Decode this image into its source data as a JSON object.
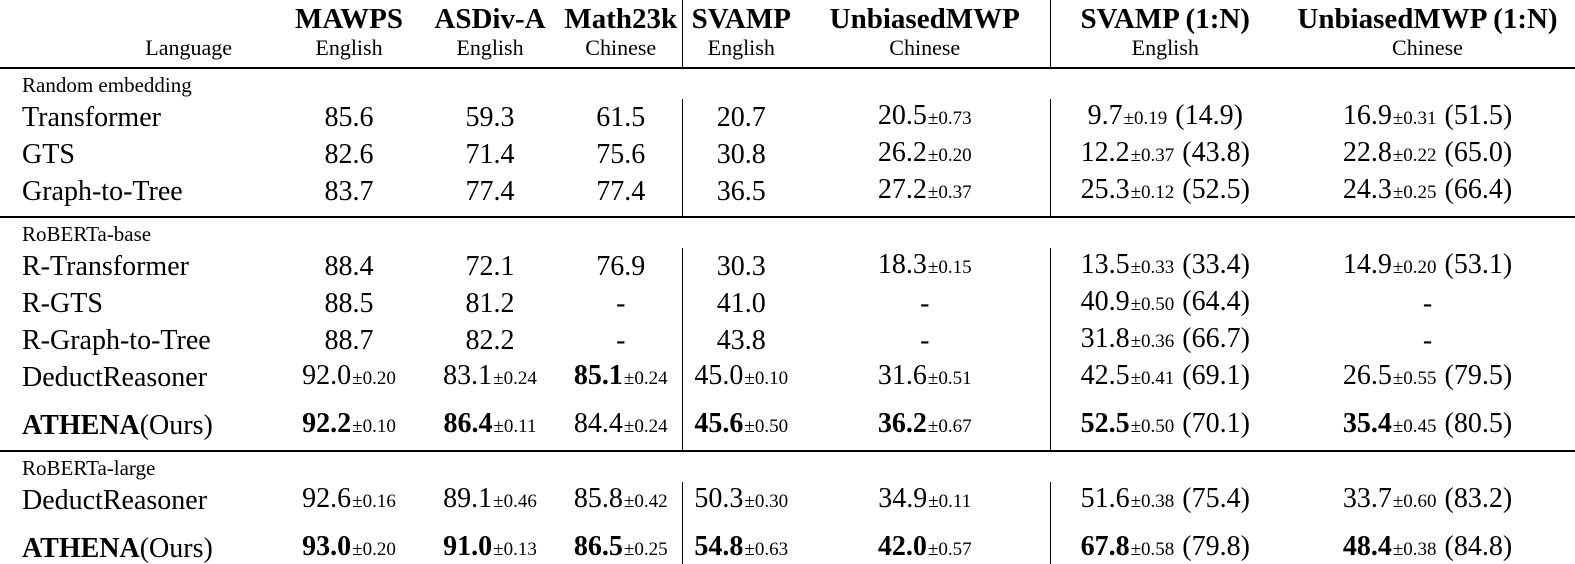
{
  "table": {
    "language_label": "Language",
    "columns": [
      {
        "name": "MAWPS",
        "language": "English",
        "divider": false
      },
      {
        "name": "ASDiv-A",
        "language": "English",
        "divider": false
      },
      {
        "name": "Math23k",
        "language": "Chinese",
        "divider": false
      },
      {
        "name": "SVAMP",
        "language": "English",
        "divider": true
      },
      {
        "name": "UnbiasedMWP",
        "language": "Chinese",
        "divider": false
      },
      {
        "name": "SVAMP (1:N)",
        "language": "English",
        "divider": true
      },
      {
        "name": "UnbiasedMWP (1:N)",
        "language": "Chinese",
        "divider": false
      }
    ],
    "sections": [
      {
        "label": "Random embedding",
        "rows": [
          {
            "method": "Transformer",
            "suffix": "",
            "method_bold": false,
            "spaced": false,
            "cells": [
              {
                "v": "85.6"
              },
              {
                "v": "59.3"
              },
              {
                "v": "61.5"
              },
              {
                "v": "20.7"
              },
              {
                "v": "20.5",
                "pm": "0.73"
              },
              {
                "v": "9.7",
                "pm": "0.19",
                "paren": "14.9"
              },
              {
                "v": "16.9",
                "pm": "0.31",
                "paren": "51.5"
              }
            ]
          },
          {
            "method": "GTS",
            "suffix": "",
            "method_bold": false,
            "spaced": false,
            "cells": [
              {
                "v": "82.6"
              },
              {
                "v": "71.4"
              },
              {
                "v": "75.6"
              },
              {
                "v": "30.8"
              },
              {
                "v": "26.2",
                "pm": "0.20"
              },
              {
                "v": "12.2",
                "pm": "0.37",
                "paren": "43.8"
              },
              {
                "v": "22.8",
                "pm": "0.22",
                "paren": "65.0"
              }
            ]
          },
          {
            "method": "Graph-to-Tree",
            "suffix": "",
            "method_bold": false,
            "spaced": false,
            "cells": [
              {
                "v": "83.7"
              },
              {
                "v": "77.4"
              },
              {
                "v": "77.4"
              },
              {
                "v": "36.5"
              },
              {
                "v": "27.2",
                "pm": "0.37"
              },
              {
                "v": "25.3",
                "pm": "0.12",
                "paren": "52.5"
              },
              {
                "v": "24.3",
                "pm": "0.25",
                "paren": "66.4"
              }
            ]
          }
        ]
      },
      {
        "label": "RoBERTa-base",
        "rows": [
          {
            "method": "R-Transformer",
            "suffix": "",
            "method_bold": false,
            "spaced": false,
            "cells": [
              {
                "v": "88.4"
              },
              {
                "v": "72.1"
              },
              {
                "v": "76.9"
              },
              {
                "v": "30.3"
              },
              {
                "v": "18.3",
                "pm": "0.15"
              },
              {
                "v": "13.5",
                "pm": "0.33",
                "paren": "33.4"
              },
              {
                "v": "14.9",
                "pm": "0.20",
                "paren": "53.1"
              }
            ]
          },
          {
            "method": "R-GTS",
            "suffix": "",
            "method_bold": false,
            "spaced": false,
            "cells": [
              {
                "v": "88.5"
              },
              {
                "v": "81.2"
              },
              {
                "v": "-"
              },
              {
                "v": "41.0"
              },
              {
                "v": "-"
              },
              {
                "v": "40.9",
                "pm": "0.50",
                "paren": "64.4"
              },
              {
                "v": "-"
              }
            ]
          },
          {
            "method": "R-Graph-to-Tree",
            "suffix": "",
            "method_bold": false,
            "spaced": false,
            "cells": [
              {
                "v": "88.7"
              },
              {
                "v": "82.2"
              },
              {
                "v": "-"
              },
              {
                "v": "43.8"
              },
              {
                "v": "-"
              },
              {
                "v": "31.8",
                "pm": "0.36",
                "paren": "66.7"
              },
              {
                "v": "-"
              }
            ]
          },
          {
            "method": "DeductReasoner",
            "suffix": "",
            "method_bold": false,
            "spaced": false,
            "cells": [
              {
                "v": "92.0",
                "pm": "0.20"
              },
              {
                "v": "83.1",
                "pm": "0.24"
              },
              {
                "v": "85.1",
                "pm": "0.24",
                "b": true
              },
              {
                "v": "45.0",
                "pm": "0.10"
              },
              {
                "v": "31.6",
                "pm": "0.51"
              },
              {
                "v": "42.5",
                "pm": "0.41",
                "paren": "69.1"
              },
              {
                "v": "26.5",
                "pm": "0.55",
                "paren": "79.5"
              }
            ]
          },
          {
            "method": "ATHENA",
            "suffix": "(Ours)",
            "method_bold": true,
            "spaced": true,
            "cells": [
              {
                "v": "92.2",
                "pm": "0.10",
                "b": true
              },
              {
                "v": "86.4",
                "pm": "0.11",
                "b": true
              },
              {
                "v": "84.4",
                "pm": "0.24"
              },
              {
                "v": "45.6",
                "pm": "0.50",
                "b": true
              },
              {
                "v": "36.2",
                "pm": "0.67",
                "b": true
              },
              {
                "v": "52.5",
                "pm": "0.50",
                "paren": "70.1",
                "b": true
              },
              {
                "v": "35.4",
                "pm": "0.45",
                "paren": "80.5",
                "b": true
              }
            ]
          }
        ]
      },
      {
        "label": "RoBERTa-large",
        "rows": [
          {
            "method": "DeductReasoner",
            "suffix": "",
            "method_bold": false,
            "spaced": false,
            "cells": [
              {
                "v": "92.6",
                "pm": "0.16"
              },
              {
                "v": "89.1",
                "pm": "0.46"
              },
              {
                "v": "85.8",
                "pm": "0.42"
              },
              {
                "v": "50.3",
                "pm": "0.30"
              },
              {
                "v": "34.9",
                "pm": "0.11"
              },
              {
                "v": "51.6",
                "pm": "0.38",
                "paren": "75.4"
              },
              {
                "v": "33.7",
                "pm": "0.60",
                "paren": "83.2"
              }
            ]
          },
          {
            "method": "ATHENA",
            "suffix": "(Ours)",
            "method_bold": true,
            "spaced": true,
            "cells": [
              {
                "v": "93.0",
                "pm": "0.20",
                "b": true
              },
              {
                "v": "91.0",
                "pm": "0.13",
                "b": true
              },
              {
                "v": "86.5",
                "pm": "0.25",
                "b": true
              },
              {
                "v": "54.8",
                "pm": "0.63",
                "b": true
              },
              {
                "v": "42.0",
                "pm": "0.57",
                "b": true
              },
              {
                "v": "67.8",
                "pm": "0.58",
                "paren": "79.8",
                "b": true
              },
              {
                "v": "48.4",
                "pm": "0.38",
                "paren": "84.8",
                "b": true
              }
            ]
          }
        ]
      }
    ]
  }
}
